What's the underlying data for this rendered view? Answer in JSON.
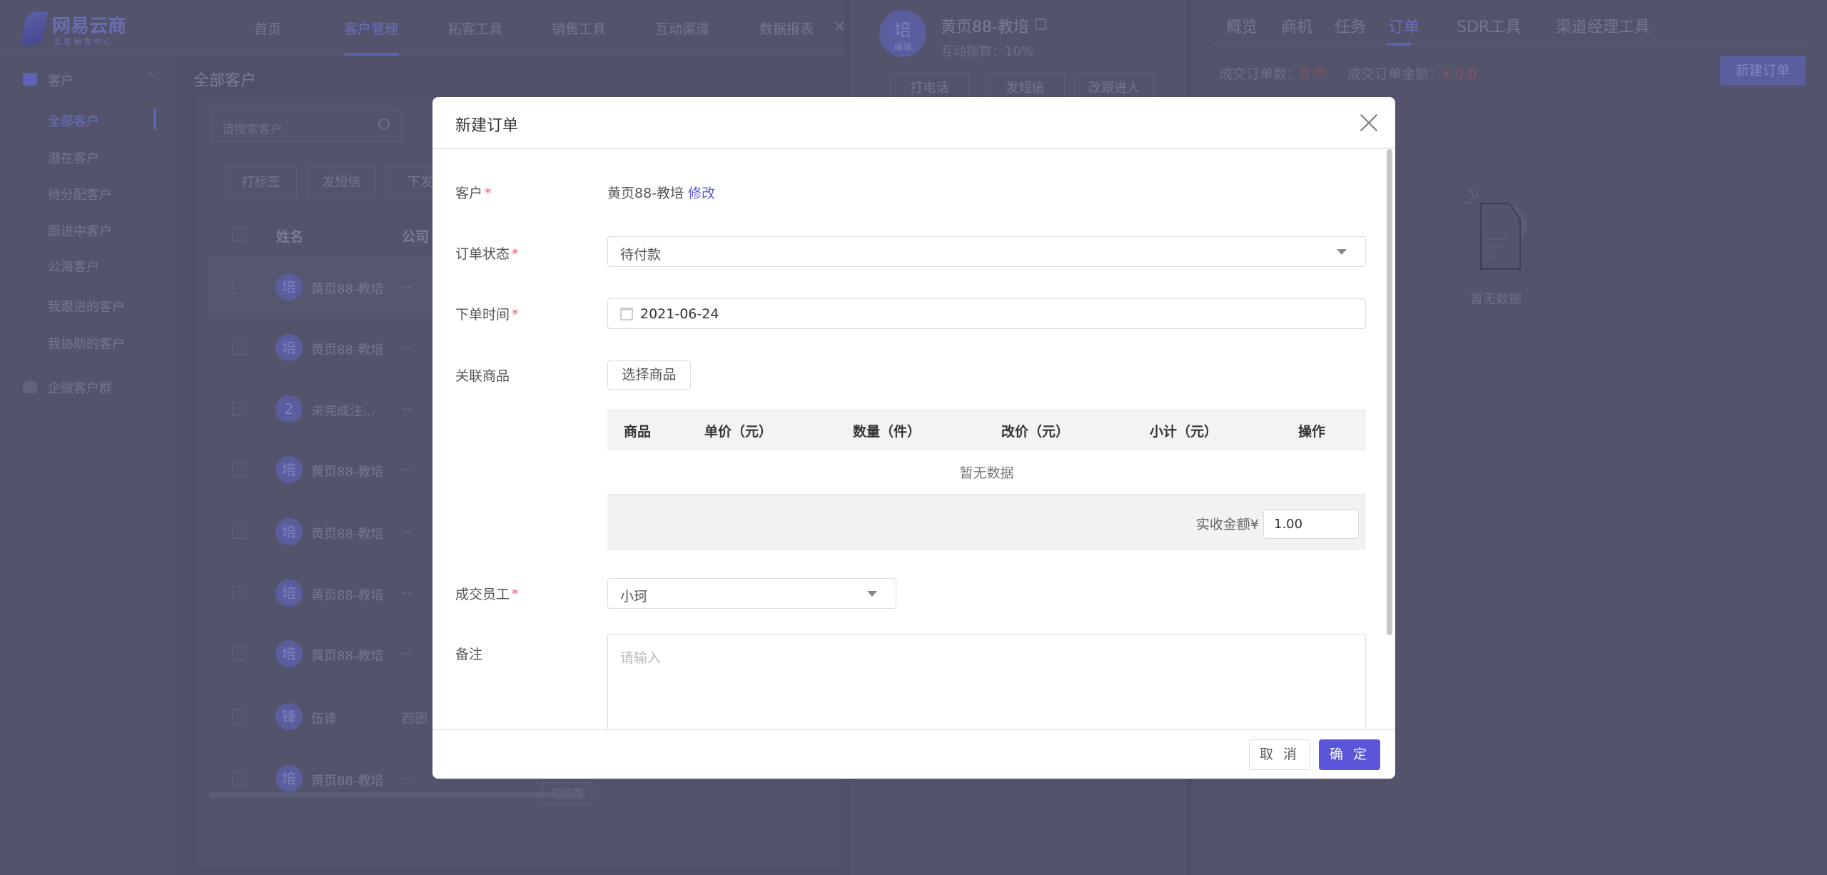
{
  "app": {
    "logo_title": "网易云商",
    "logo_subtitle": "互客销售中心"
  },
  "topnav": {
    "items": [
      "首页",
      "客户管理",
      "拓客工具",
      "销售工具",
      "互动渠道",
      "数据报表"
    ],
    "active": 1,
    "close": "×"
  },
  "sidebar": {
    "group": "客户",
    "items": [
      "全部客户",
      "潜在客户",
      "待分配客户",
      "跟进中客户",
      "公海客户",
      "我跟进的客户",
      "我协助的客户"
    ],
    "active": 0,
    "group2": "企微客户群"
  },
  "list": {
    "title": "全部客户",
    "search_placeholder": "请搜索客户",
    "actions": [
      "打标签",
      "发短信",
      "下发"
    ],
    "columns": [
      "姓名",
      "公司"
    ],
    "rows": [
      {
        "avatar": "培",
        "name": "黄页88-教培",
        "company": "--"
      },
      {
        "avatar": "培",
        "name": "黄页88-教培",
        "company": "--"
      },
      {
        "avatar": "2",
        "name": "未完成注...",
        "company": "--"
      },
      {
        "avatar": "培",
        "name": "黄页88-教培",
        "company": "--"
      },
      {
        "avatar": "培",
        "name": "黄页88-教培",
        "company": "--"
      },
      {
        "avatar": "培",
        "name": "黄页88-教培",
        "company": "--"
      },
      {
        "avatar": "培",
        "name": "黄页88-教培",
        "company": "--"
      },
      {
        "avatar": "锋",
        "name": "伍锋",
        "company": "西图"
      },
      {
        "avatar": "培",
        "name": "黄页88-教培",
        "company": "--"
      }
    ],
    "last_row_tag": "可培育"
  },
  "detail": {
    "avatar": "培",
    "avatar_edit": "编辑",
    "name": "黄页88-教培",
    "interaction_index": "互动指数：10%",
    "actions": [
      "打电话",
      "发短信",
      "改跟进人"
    ]
  },
  "right": {
    "tabs": [
      "概览",
      "商机",
      "任务",
      "订单",
      "SDR工具",
      "渠道经理工具"
    ],
    "active": 3,
    "stat1_label": "成交订单数：",
    "stat1_value": "0 个",
    "stat2_label": "成交订单金额：",
    "stat2_value": "¥ 0.0",
    "new_order": "新建订单",
    "empty": "暂无数据"
  },
  "modal": {
    "title": "新建订单",
    "customer_label": "客户",
    "customer_value": "黄页88-教培",
    "customer_edit": "修改",
    "status_label": "订单状态",
    "status_value": "待付款",
    "date_label": "下单时间",
    "date_value": "2021-06-24",
    "goods_label": "关联商品",
    "goods_button": "选择商品",
    "table_columns": [
      "商品",
      "单价（元）",
      "数量（件）",
      "改价（元）",
      "小计（元）",
      "操作"
    ],
    "table_empty": "暂无数据",
    "received_label": "实收金额¥",
    "received_value": "1.00",
    "staff_label": "成交员工",
    "staff_value": "小珂",
    "remark_label": "备注",
    "remark_placeholder": "请输入",
    "required_mark": "*",
    "cancel": "取 消",
    "confirm": "确 定"
  },
  "colors": {
    "accent": "#5a55d9",
    "required": "#f05a6e",
    "overlay": "#1b1c3a"
  }
}
